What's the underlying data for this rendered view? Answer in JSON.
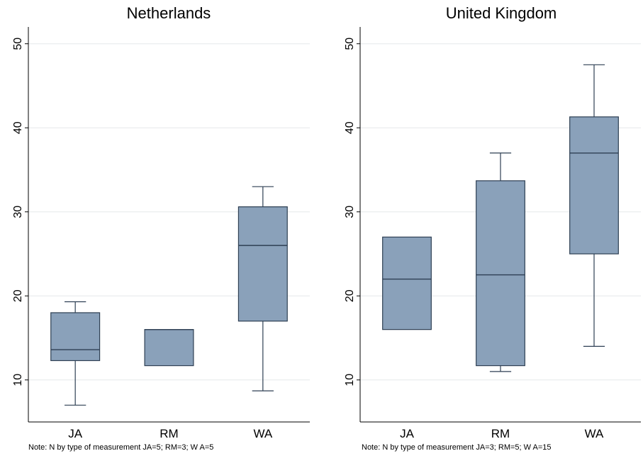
{
  "chart_data": [
    {
      "type": "box",
      "title": "Netherlands",
      "categories": [
        "JA",
        "RM",
        "WA"
      ],
      "ylim": [
        5,
        52
      ],
      "yticks": [
        10,
        20,
        30,
        40,
        50
      ],
      "grid": true,
      "box_color": "#8aa1ba",
      "box_stroke": "#2e3f53",
      "boxes": [
        {
          "category": "JA",
          "whisker_low": 7,
          "q1": 12.3,
          "median": 13.6,
          "q3": 18,
          "whisker_high": 19.3
        },
        {
          "category": "RM",
          "whisker_low": 11.7,
          "q1": 11.7,
          "median": 16,
          "q3": 16,
          "whisker_high": 16
        },
        {
          "category": "WA",
          "whisker_low": 8.7,
          "q1": 17,
          "median": 26,
          "q3": 30.6,
          "whisker_high": 33
        }
      ],
      "note": "Note: N by type of measurement JA=5; RM=3; W A=5"
    },
    {
      "type": "box",
      "title": "United Kingdom",
      "categories": [
        "JA",
        "RM",
        "WA"
      ],
      "ylim": [
        5,
        52
      ],
      "yticks": [
        10,
        20,
        30,
        40,
        50
      ],
      "grid": true,
      "box_color": "#8aa1ba",
      "box_stroke": "#2e3f53",
      "boxes": [
        {
          "category": "JA",
          "whisker_low": 16,
          "q1": 16,
          "median": 22,
          "q3": 27,
          "whisker_high": 27
        },
        {
          "category": "RM",
          "whisker_low": 11,
          "q1": 11.7,
          "median": 22.5,
          "q3": 33.7,
          "whisker_high": 37
        },
        {
          "category": "WA",
          "whisker_low": 14,
          "q1": 25,
          "median": 37,
          "q3": 41.3,
          "whisker_high": 47.5
        }
      ],
      "note": "Note: N by type of measurement JA=3; RM=5; W A=15"
    }
  ]
}
